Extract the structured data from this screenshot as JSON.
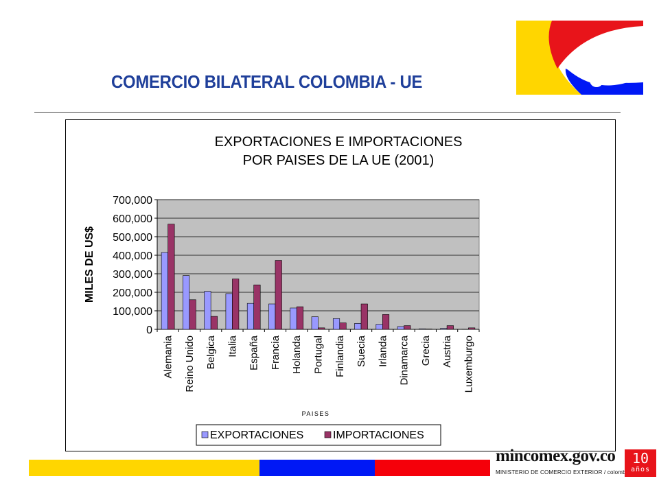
{
  "slide": {
    "title": "COMERCIO BILATERAL COLOMBIA - UE"
  },
  "branding": {
    "site": "mincomex.gov.co",
    "subtitle": "MINISTERIO DE COMERCIO EXTERIOR / colombia",
    "badge_number": "10",
    "badge_word": "años",
    "band_colors": [
      "#ffd600",
      "#0018f5",
      "#f5000a"
    ],
    "logo_colors": {
      "yellow": "#ffd600",
      "blue": "#0018f5",
      "red": "#e8141a"
    }
  },
  "chart_data": {
    "type": "bar",
    "title": [
      "EXPORTACIONES E IMPORTACIONES",
      "POR PAISES DE LA UE (2001)"
    ],
    "xlabel": "PAISES",
    "ylabel": "MILES DE US$",
    "ylim": [
      0,
      700000
    ],
    "yticks": [
      0,
      100000,
      200000,
      300000,
      400000,
      500000,
      600000,
      700000
    ],
    "ytick_labels": [
      "0",
      "100,000",
      "200,000",
      "300,000",
      "400,000",
      "500,000",
      "600,000",
      "700,000"
    ],
    "grid": true,
    "plot_background": "#c0c0c0",
    "legend_position": "bottom",
    "categories": [
      "Alemania",
      "Reino Unido",
      "Belgica",
      "Italia",
      "España",
      "Francia",
      "Holanda",
      "Portugal",
      "Finlandia",
      "Suecia",
      "Irlanda",
      "Dinamarca",
      "Grecia",
      "Austria",
      "Luxemburgo"
    ],
    "series": [
      {
        "name": "EXPORTACIONES",
        "color": "#9999ff",
        "values": [
          415000,
          290000,
          205000,
          193000,
          140000,
          137000,
          115000,
          68000,
          58000,
          32000,
          27000,
          15000,
          3000,
          5000,
          1000
        ]
      },
      {
        "name": "IMPORTACIONES",
        "color": "#993366",
        "values": [
          568000,
          160000,
          70000,
          272000,
          240000,
          372000,
          122000,
          8000,
          35000,
          137000,
          80000,
          20000,
          2000,
          20000,
          8000
        ]
      }
    ]
  }
}
